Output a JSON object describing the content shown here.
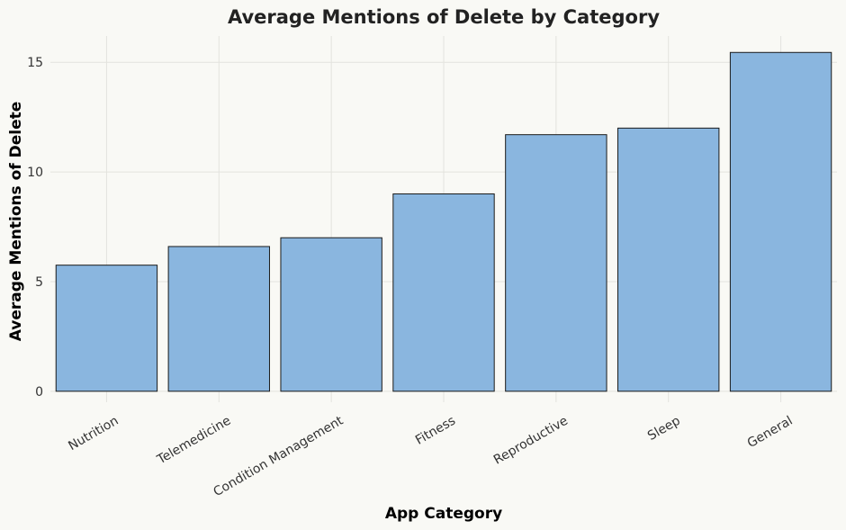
{
  "chart_data": {
    "type": "bar",
    "title": "Average Mentions of Delete by Category",
    "xlabel": "App Category",
    "ylabel": "Average Mentions of Delete",
    "categories": [
      "Nutrition",
      "Telemedicine",
      "Condition Management",
      "Fitness",
      "Reproductive",
      "Sleep",
      "General"
    ],
    "values": [
      5.75,
      6.6,
      7.0,
      9.0,
      11.7,
      12.0,
      15.45
    ],
    "ylim": [
      -0.5,
      16.2
    ],
    "yticks": [
      0,
      5,
      10,
      15
    ],
    "grid": true,
    "legend": "none",
    "colors": {
      "bar": "#8ab6df",
      "bar_edge": "#1a1a1a",
      "background": "#f9f9f5",
      "grid": "#e3e3de"
    }
  }
}
